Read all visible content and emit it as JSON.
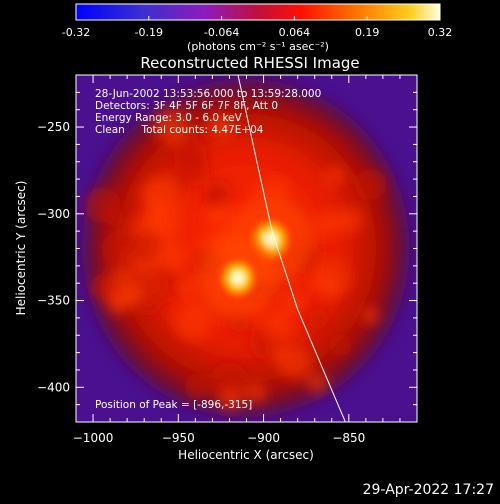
{
  "colorbar": {
    "ticks": [
      "-0.32",
      "-0.19",
      "-0.064",
      "0.064",
      "0.19",
      "0.32"
    ],
    "unit_label": "(photons cm⁻² s⁻¹ asec⁻²)",
    "range": [
      -0.32,
      0.32
    ]
  },
  "chart_data": {
    "type": "heatmap",
    "title": "Reconstructed RHESSI Image",
    "xlabel": "Heliocentric X (arcsec)",
    "ylabel": "Heliocentric Y (arcsec)",
    "xlim": [
      -1010,
      -810
    ],
    "ylim": [
      -420,
      -220
    ],
    "x_ticks": [
      -1000,
      -950,
      -900,
      -850
    ],
    "y_ticks": [
      -400,
      -350,
      -300,
      -250
    ],
    "x_tick_labels": [
      "−1000",
      "−950",
      "−900",
      "−850"
    ],
    "y_tick_labels": [
      "−400",
      "−350",
      "−300",
      "−250"
    ],
    "sources": [
      {
        "x": -896,
        "y": -315,
        "value": 0.32
      },
      {
        "x": -915,
        "y": -337,
        "value": 0.27
      }
    ],
    "limb_curve": [
      [
        -915,
        -220
      ],
      [
        -905,
        -265
      ],
      [
        -895,
        -310
      ],
      [
        -880,
        -355
      ],
      [
        -865,
        -390
      ],
      [
        -852,
        -420
      ]
    ],
    "annotations": [
      "28-Jun-2002 13:53:56.000 to 13:59:28.000",
      "Detectors: 3F 4F 5F 6F 7F 8F, Att 0",
      "Energy Range: 3.0 - 6.0 keV",
      "Clean     Total counts: 4.47E+04"
    ],
    "peak_label": "Position of Peak = [-896,-315]"
  },
  "footer": {
    "date": "29-Apr-2022 17:27"
  }
}
